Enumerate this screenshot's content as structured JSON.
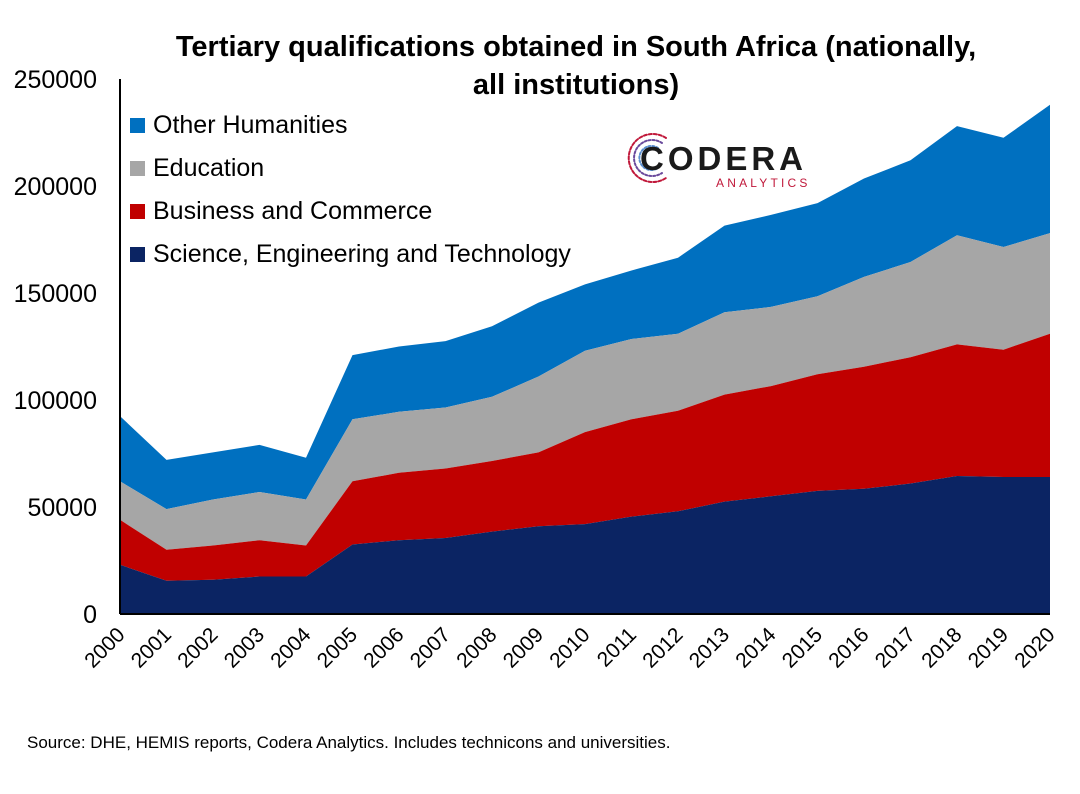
{
  "chart_data": {
    "type": "area",
    "stacked": true,
    "title_lines": [
      "Tertiary qualifications obtained in South Africa (nationally,",
      "all institutions)"
    ],
    "xlabel": "",
    "ylabel": "",
    "categories": [
      "2000",
      "2001",
      "2002",
      "2003",
      "2004",
      "2005",
      "2006",
      "2007",
      "2008",
      "2009",
      "2010",
      "2011",
      "2012",
      "2013",
      "2014",
      "2015",
      "2016",
      "2017",
      "2018",
      "2019",
      "2020"
    ],
    "ylim": [
      0,
      250000
    ],
    "yticks": [
      0,
      50000,
      100000,
      150000,
      200000,
      250000
    ],
    "ytick_labels": [
      "0",
      "50000",
      "100000",
      "150000",
      "200000",
      "250000"
    ],
    "grid": false,
    "legend_position": "top-left",
    "series": [
      {
        "name": "Science,  Engineering and Technology",
        "color": "#0b2463",
        "values": [
          23000,
          15500,
          16000,
          17500,
          17500,
          32500,
          34500,
          35500,
          38500,
          41000,
          42000,
          45500,
          48000,
          52500,
          55000,
          57500,
          58500,
          61000,
          64500,
          64000,
          64000
        ]
      },
      {
        "name": "Business and Commerce",
        "color": "#c00000",
        "values": [
          21000,
          14500,
          16000,
          17000,
          14500,
          29500,
          31500,
          32500,
          33000,
          34500,
          43000,
          45500,
          47000,
          50000,
          51500,
          54500,
          57000,
          59000,
          61500,
          59500,
          67000
        ]
      },
      {
        "name": "Education",
        "color": "#a6a6a6",
        "values": [
          18000,
          19000,
          21500,
          22500,
          21500,
          29000,
          28500,
          28500,
          30000,
          35500,
          38000,
          37500,
          36000,
          38500,
          37000,
          36500,
          42000,
          44500,
          51000,
          48000,
          47000
        ]
      },
      {
        "name": "Other Humanities",
        "color": "#0070c0",
        "values": [
          30500,
          23000,
          22000,
          22000,
          19500,
          30000,
          30500,
          31000,
          33000,
          34500,
          31000,
          32000,
          35500,
          40500,
          43000,
          43500,
          46000,
          47500,
          51000,
          51000,
          60000
        ]
      }
    ]
  },
  "logo": {
    "name": "CODERA",
    "subtitle": "ANALYTICS"
  },
  "source_note": "Source: DHE, HEMIS reports, Codera Analytics. Includes technicons and universities."
}
